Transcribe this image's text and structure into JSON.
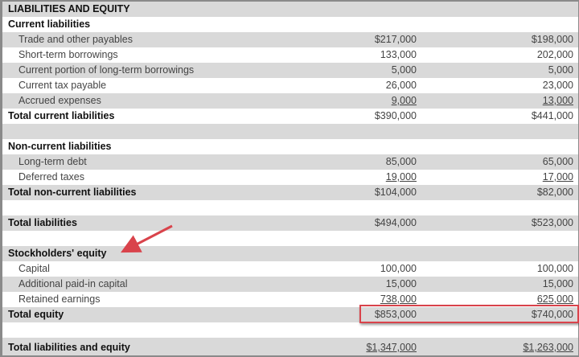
{
  "title": "LIABILITIES AND EQUITY",
  "rows": [
    {
      "label": "Current liabilities",
      "style": "bold",
      "v1": "",
      "v2": ""
    },
    {
      "label": "Trade and other payables",
      "style": "indent",
      "v1": "$217,000",
      "v2": "$198,000"
    },
    {
      "label": "Short-term borrowings",
      "style": "indent",
      "v1": "133,000",
      "v2": "202,000"
    },
    {
      "label": "Current portion of long-term borrowings",
      "style": "indent",
      "v1": "5,000",
      "v2": "5,000"
    },
    {
      "label": "Current tax payable",
      "style": "indent",
      "v1": "26,000",
      "v2": "23,000"
    },
    {
      "label": "Accrued expenses",
      "style": "indent",
      "v1": "9,000",
      "v2": "13,000",
      "underline": true
    },
    {
      "label": "Total current liabilities",
      "style": "bold",
      "v1": "$390,000",
      "v2": "$441,000"
    },
    {
      "label": "",
      "style": "",
      "v1": "",
      "v2": ""
    },
    {
      "label": "Non-current liabilities",
      "style": "bold",
      "v1": "",
      "v2": ""
    },
    {
      "label": "Long-term debt",
      "style": "indent",
      "v1": "85,000",
      "v2": "65,000"
    },
    {
      "label": "Deferred taxes",
      "style": "indent",
      "v1": "19,000",
      "v2": "17,000",
      "underline": true
    },
    {
      "label": "Total non-current liabilities",
      "style": "bold",
      "v1": "$104,000",
      "v2": "$82,000"
    },
    {
      "label": "",
      "style": "",
      "v1": "",
      "v2": ""
    },
    {
      "label": "Total liabilities",
      "style": "bold",
      "v1": "$494,000",
      "v2": "$523,000"
    },
    {
      "label": "",
      "style": "",
      "v1": "",
      "v2": ""
    },
    {
      "label": "Stockholders' equity",
      "style": "bold",
      "v1": "",
      "v2": ""
    },
    {
      "label": "Capital",
      "style": "indent",
      "v1": "100,000",
      "v2": "100,000"
    },
    {
      "label": "Additional paid-in capital",
      "style": "indent",
      "v1": "15,000",
      "v2": "15,000"
    },
    {
      "label": "Retained earnings",
      "style": "indent",
      "v1": "738,000",
      "v2": "625,000",
      "underline": true
    },
    {
      "label": "Total equity",
      "style": "bold",
      "v1": "$853,000",
      "v2": "$740,000"
    },
    {
      "label": "",
      "style": "",
      "v1": "",
      "v2": ""
    },
    {
      "label": "Total liabilities and equity",
      "style": "bold",
      "v1": "$1,347,000",
      "v2": "$1,263,000",
      "underline": true
    }
  ],
  "annotation_color": "#d9434b"
}
